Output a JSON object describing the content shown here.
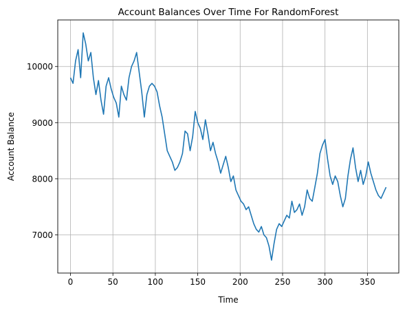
{
  "chart_data": {
    "type": "line",
    "title": "Account Balances Over Time For RandomForest",
    "xlabel": "Time",
    "ylabel": "Account Balance",
    "xlim": [
      -15,
      387
    ],
    "ylim": [
      6320,
      10830
    ],
    "xticks": [
      0,
      50,
      100,
      150,
      200,
      250,
      300,
      350
    ],
    "yticks": [
      7000,
      8000,
      9000,
      10000
    ],
    "grid": true,
    "line_color": "#1f77b4",
    "series": [
      {
        "x": [
          0,
          3,
          6,
          9,
          12,
          15,
          18,
          21,
          24,
          27,
          30,
          33,
          36,
          39,
          42,
          45,
          48,
          51,
          54,
          57,
          60,
          63,
          66,
          69,
          72,
          75,
          78,
          81,
          84,
          87,
          90,
          93,
          96,
          99,
          102,
          105,
          108,
          111,
          114,
          117,
          120,
          123,
          126,
          129,
          132,
          135,
          138,
          141,
          144,
          147,
          150,
          153,
          156,
          159,
          162,
          165,
          168,
          171,
          174,
          177,
          180,
          183,
          186,
          189,
          192,
          195,
          198,
          201,
          204,
          207,
          210,
          213,
          216,
          219,
          222,
          225,
          228,
          231,
          234,
          237,
          240,
          243,
          246,
          249,
          252,
          255,
          258,
          261,
          264,
          267,
          270,
          273,
          276,
          279,
          282,
          285,
          288,
          291,
          294,
          297,
          300,
          303,
          306,
          309,
          312,
          315,
          318,
          321,
          324,
          327,
          330,
          333,
          336,
          339,
          342,
          345,
          348,
          351,
          354,
          357,
          360,
          363,
          366,
          369,
          372
        ],
        "y": [
          9800,
          9700,
          10100,
          10300,
          9800,
          10600,
          10400,
          10100,
          10250,
          9800,
          9500,
          9750,
          9400,
          9150,
          9650,
          9800,
          9600,
          9450,
          9350,
          9100,
          9650,
          9500,
          9400,
          9800,
          10000,
          10100,
          10250,
          9900,
          9550,
          9100,
          9500,
          9650,
          9700,
          9650,
          9550,
          9300,
          9100,
          8800,
          8500,
          8400,
          8300,
          8150,
          8200,
          8300,
          8450,
          8850,
          8800,
          8500,
          8750,
          9200,
          9000,
          8900,
          8700,
          9050,
          8800,
          8500,
          8650,
          8450,
          8300,
          8100,
          8250,
          8400,
          8200,
          7950,
          8050,
          7800,
          7700,
          7600,
          7550,
          7450,
          7500,
          7350,
          7200,
          7100,
          7050,
          7150,
          7000,
          6950,
          6800,
          6550,
          6850,
          7100,
          7200,
          7150,
          7250,
          7350,
          7300,
          7600,
          7400,
          7450,
          7550,
          7350,
          7500,
          7800,
          7650,
          7600,
          7850,
          8100,
          8450,
          8600,
          8700,
          8350,
          8050,
          7900,
          8050,
          7950,
          7700,
          7500,
          7650,
          8050,
          8350,
          8550,
          8200,
          7950,
          8150,
          7900,
          8050,
          8300,
          8100,
          7950,
          7800,
          7700,
          7650,
          7750,
          7850
        ]
      }
    ]
  }
}
